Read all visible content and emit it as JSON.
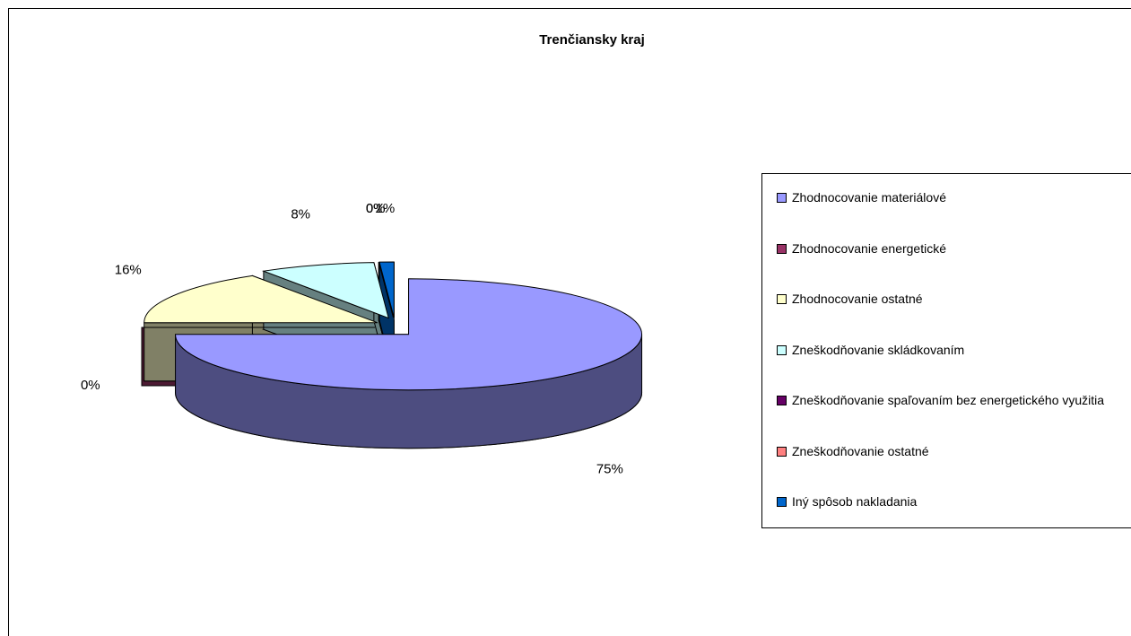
{
  "chart_data": {
    "type": "pie",
    "title": "Trenčiansky kraj",
    "categories": [
      "Zhodnocovanie materiálové",
      "Zhodnocovanie energetické",
      "Zhodnocovanie ostatné",
      "Zneškodňovanie skládkovaním",
      "Zneškodňovanie spaľovaním bez energetického využitia",
      "Zneškodňovanie ostatné",
      "Iný spôsob nakladania"
    ],
    "values": [
      75,
      0,
      16,
      8,
      0,
      0,
      1
    ],
    "value_labels": [
      "75%",
      "0%",
      "16%",
      "8%",
      "0%",
      "0%",
      "1%"
    ],
    "colors": [
      "#9999ff",
      "#993366",
      "#ffffcc",
      "#ccffff",
      "#660066",
      "#ff8080",
      "#0066cc"
    ],
    "legend": "right"
  }
}
